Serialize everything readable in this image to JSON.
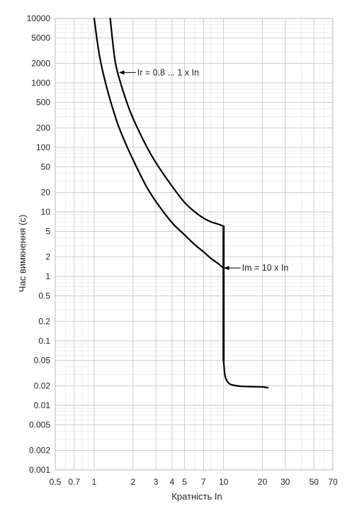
{
  "chart_data": {
    "type": "line",
    "title": "",
    "xlabel": "Кратність In",
    "ylabel": "Час вимкнення (с)",
    "x_scale": "log",
    "y_scale": "log",
    "xlim": [
      0.5,
      70
    ],
    "ylim": [
      0.001,
      10000
    ],
    "grid": true,
    "x_ticks": [
      {
        "value": 0.5,
        "label": "0.5"
      },
      {
        "value": 0.7,
        "label": "0.7"
      },
      {
        "value": 1,
        "label": "1"
      },
      {
        "value": 2,
        "label": "2"
      },
      {
        "value": 3,
        "label": "3"
      },
      {
        "value": 4,
        "label": "4"
      },
      {
        "value": 5,
        "label": "5"
      },
      {
        "value": 7,
        "label": "7"
      },
      {
        "value": 10,
        "label": "10"
      },
      {
        "value": 20,
        "label": "20"
      },
      {
        "value": 30,
        "label": "30"
      },
      {
        "value": 50,
        "label": "50"
      },
      {
        "value": 70,
        "label": "70"
      }
    ],
    "y_ticks": [
      {
        "value": 10000,
        "label": "10000"
      },
      {
        "value": 5000,
        "label": "5000"
      },
      {
        "value": 2000,
        "label": "2000"
      },
      {
        "value": 1000,
        "label": "1000"
      },
      {
        "value": 500,
        "label": "500"
      },
      {
        "value": 200,
        "label": "200"
      },
      {
        "value": 100,
        "label": "100"
      },
      {
        "value": 50,
        "label": "50"
      },
      {
        "value": 20,
        "label": "20"
      },
      {
        "value": 10,
        "label": "10"
      },
      {
        "value": 5,
        "label": "5"
      },
      {
        "value": 2,
        "label": "2"
      },
      {
        "value": 1,
        "label": "1"
      },
      {
        "value": 0.5,
        "label": "0.5"
      },
      {
        "value": 0.2,
        "label": "0.2"
      },
      {
        "value": 0.1,
        "label": "0.1"
      },
      {
        "value": 0.05,
        "label": "0.05"
      },
      {
        "value": 0.02,
        "label": "0.02"
      },
      {
        "value": 0.01,
        "label": "0.01"
      },
      {
        "value": 0.005,
        "label": "0.005"
      },
      {
        "value": 0.002,
        "label": "0.002"
      },
      {
        "value": 0.001,
        "label": "0.001"
      }
    ],
    "series": [
      {
        "x": [
          1.0,
          1.1,
          1.25,
          1.5,
          1.75,
          2,
          2.5,
          3,
          4,
          5,
          6,
          7,
          8,
          9,
          10
        ],
        "y": [
          10000,
          2600,
          850,
          250,
          115,
          64,
          26,
          14.5,
          6.8,
          4.4,
          3.1,
          2.4,
          1.9,
          1.6,
          1.35
        ]
      },
      {
        "x": [
          1.33,
          1.45,
          1.6,
          1.8,
          2,
          2.5,
          3,
          4,
          5,
          6,
          7,
          8,
          9,
          10
        ],
        "y": [
          10000,
          2200,
          1000,
          480,
          280,
          110,
          58,
          25,
          14,
          10,
          8,
          7,
          6.5,
          6
        ]
      },
      {
        "x": [
          10,
          10
        ],
        "y": [
          6,
          0.05
        ]
      },
      {
        "x": [
          10,
          10.3,
          11,
          12,
          14,
          17,
          20,
          22
        ],
        "y": [
          0.05,
          0.028,
          0.022,
          0.0205,
          0.0197,
          0.0195,
          0.0193,
          0.0188
        ]
      }
    ],
    "annotations": [
      {
        "text": "Ir = 0.8 ... 1 x In",
        "x": 1.55,
        "y": 1450
      },
      {
        "text": "Im = 10 x In",
        "x": 10,
        "y": 1.35
      }
    ],
    "line_color": "#000000",
    "grid_color": "#c8c8c8"
  }
}
